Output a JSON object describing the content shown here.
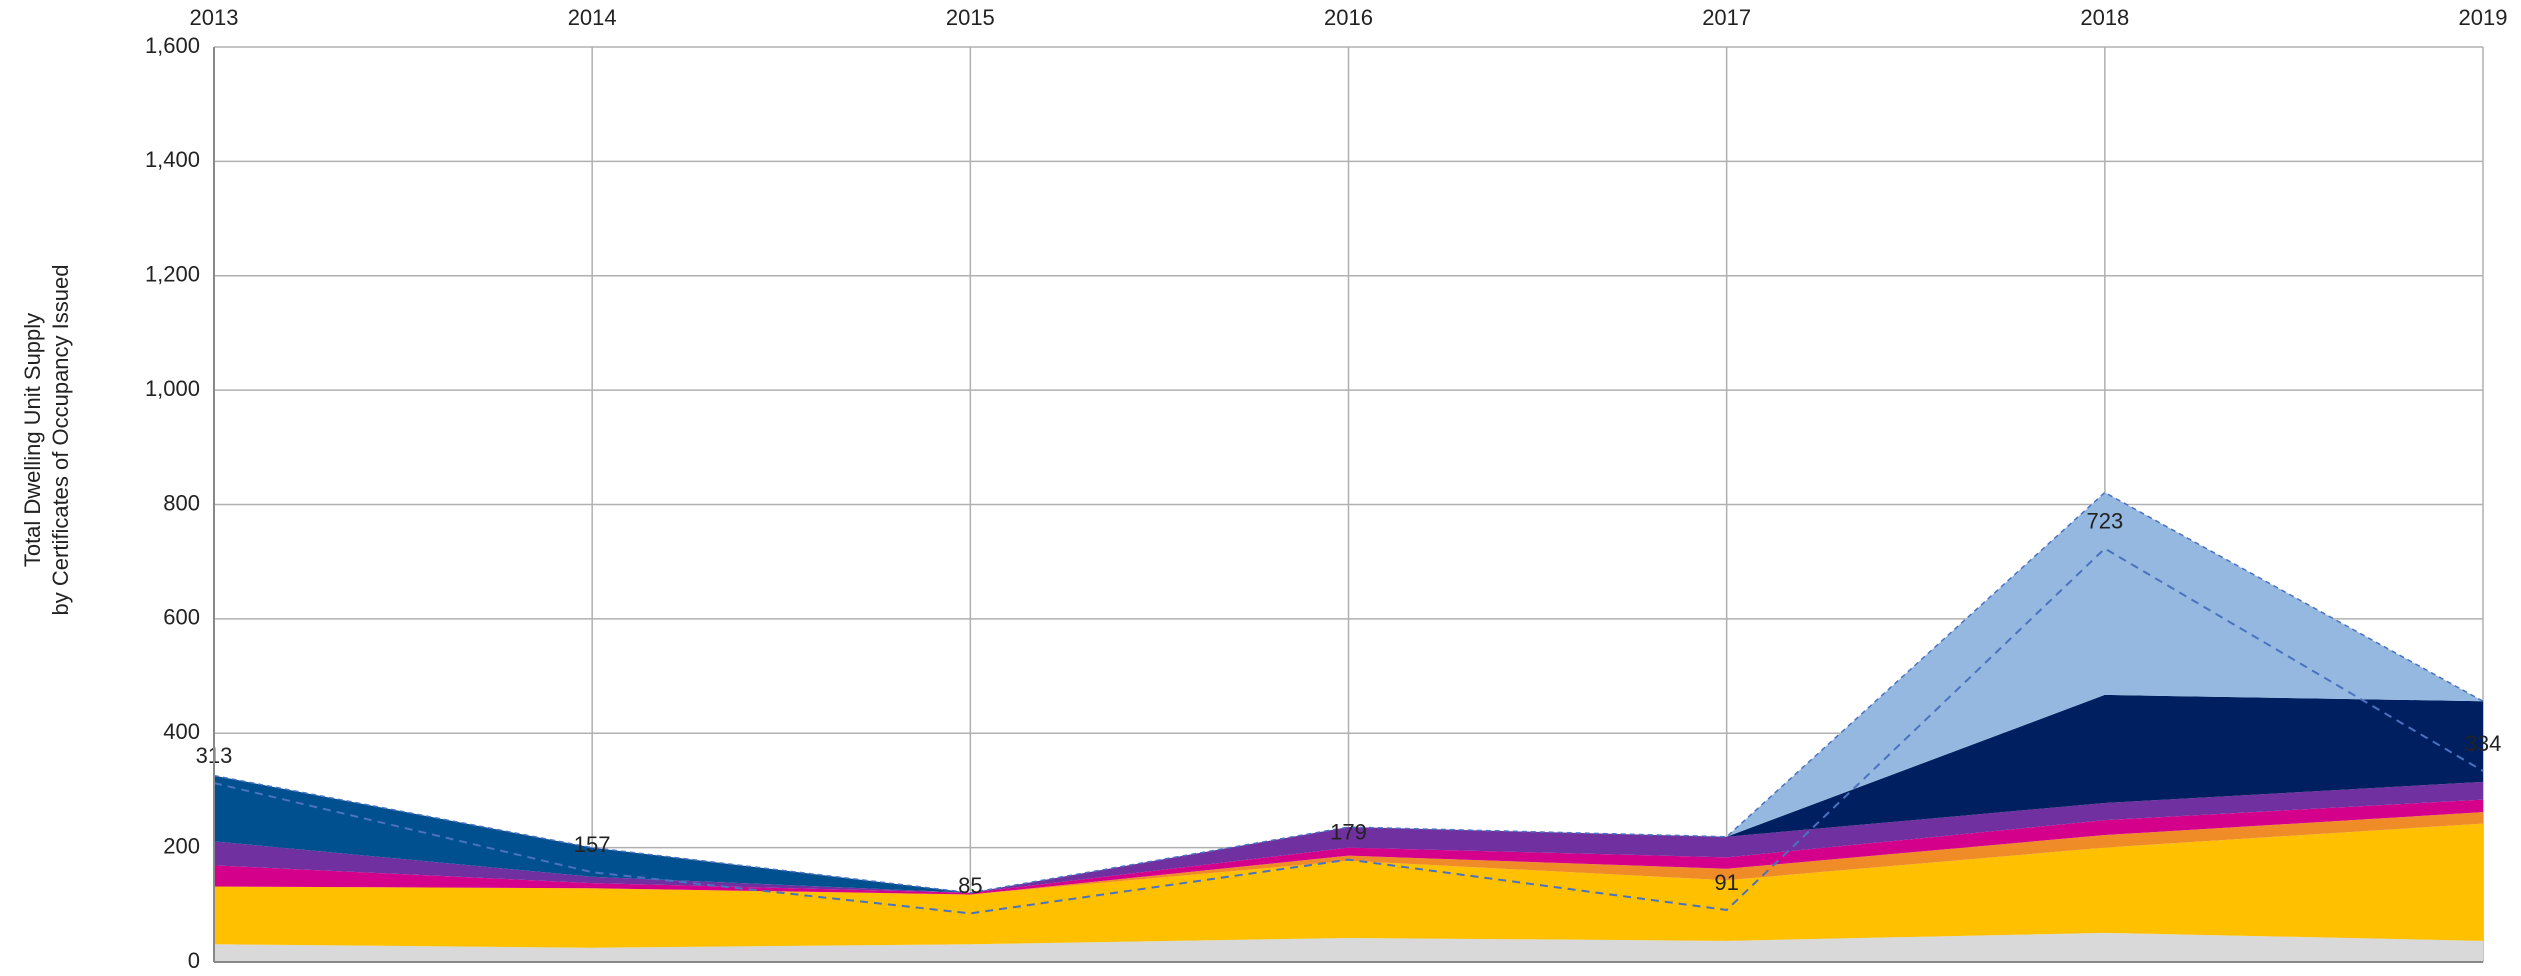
{
  "chart_data": {
    "type": "stacked_area",
    "y_label": [
      "Total Dwelling Unit Supply",
      "by Certificates of Occupancy Issued"
    ],
    "categories": [
      "2013",
      "2014",
      "2015",
      "2016",
      "2017",
      "2018",
      "2019"
    ],
    "ylim": [
      0,
      1600
    ],
    "yticks": [
      0,
      {
        "value": 200,
        "label": "200"
      },
      {
        "value": 400,
        "label": "400"
      },
      {
        "value": 600,
        "label": "600"
      },
      {
        "value": 800,
        "label": "800"
      },
      {
        "value": 1000,
        "label": "1,000"
      },
      {
        "value": 1200,
        "label": "1,200"
      },
      {
        "value": 1400,
        "label": "1,400"
      },
      {
        "value": 1600,
        "label": "1,600"
      }
    ],
    "grid": true,
    "series": [
      {
        "color": "#d9d9d9",
        "values": [
          31,
          25,
          31,
          42,
          37,
          51,
          37
        ]
      },
      {
        "color": "#ffc000",
        "values": [
          101,
          104,
          87,
          135,
          106,
          149,
          205
        ]
      },
      {
        "color": "#f08c28",
        "values": [
          0,
          0,
          0,
          9,
          20,
          22,
          20
        ]
      },
      {
        "color": "#d4008c",
        "values": [
          37,
          9,
          3,
          14,
          20,
          26,
          22
        ]
      },
      {
        "color": "#7030a0",
        "values": [
          42,
          11,
          0,
          36,
          36,
          30,
          31
        ]
      },
      {
        "color": "#004f8f",
        "values": [
          115,
          51,
          0,
          0,
          0,
          0,
          0
        ]
      },
      {
        "color": "#001f60",
        "values": [
          0,
          0,
          0,
          0,
          0,
          189,
          141
        ]
      },
      {
        "color": "#95b8e0",
        "values": [
          0,
          0,
          0,
          0,
          0,
          354,
          0
        ]
      }
    ],
    "line": {
      "color": "#4a72c0",
      "dashed": true,
      "values": [
        313,
        157,
        85,
        179,
        91,
        723,
        334
      ]
    }
  }
}
